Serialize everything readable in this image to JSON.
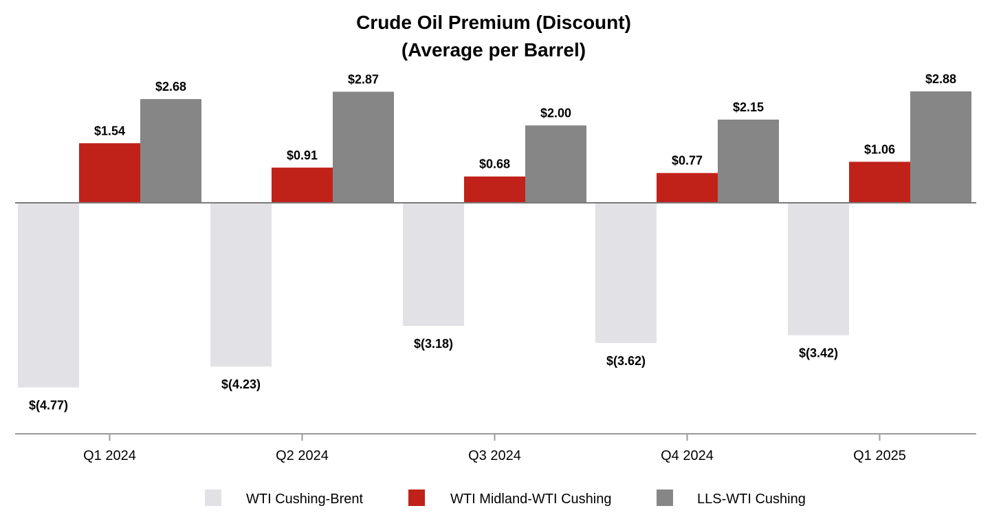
{
  "chart_data": {
    "type": "bar",
    "title": [
      "Crude Oil Premium (Discount)",
      "(Average per Barrel)"
    ],
    "xlabel": "",
    "ylabel": "",
    "ylim": [
      -5.3,
      3.1
    ],
    "grid": false,
    "legend_position": "bottom-center",
    "categories": [
      "Q1 2024",
      "Q2 2024",
      "Q3 2024",
      "Q4 2024",
      "Q1 2025"
    ],
    "series": [
      {
        "name": "WTI Cushing-Brent",
        "color": "#E1E1E6",
        "values": [
          -4.77,
          -4.23,
          -3.18,
          -3.62,
          -3.42
        ],
        "labels": [
          "$(4.77)",
          "$(4.23)",
          "$(3.18)",
          "$(3.62)",
          "$(3.42)"
        ]
      },
      {
        "name": "WTI Midland-WTI Cushing",
        "color": "#C0221A",
        "values": [
          1.54,
          0.91,
          0.68,
          0.77,
          1.06
        ],
        "labels": [
          "$1.54",
          "$0.91",
          "$0.68",
          "$0.77",
          "$1.06"
        ]
      },
      {
        "name": "LLS-WTI Cushing",
        "color": "#868686",
        "values": [
          2.68,
          2.87,
          2.0,
          2.15,
          2.88
        ],
        "labels": [
          "$2.68",
          "$2.87",
          "$2.00",
          "$2.15",
          "$2.88"
        ]
      }
    ]
  }
}
